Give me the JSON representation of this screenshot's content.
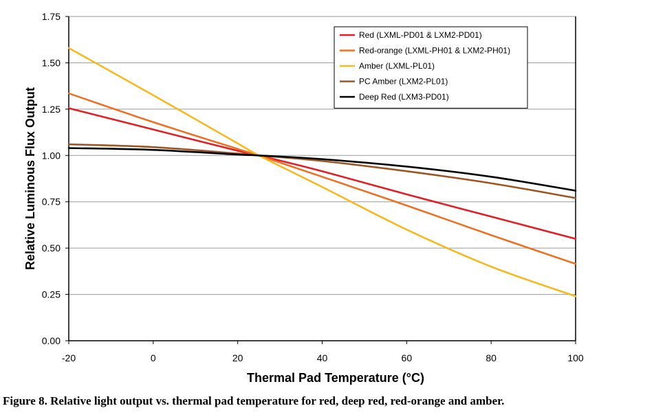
{
  "chart_data": {
    "type": "line",
    "xlabel": "Thermal Pad Temperature (°C)",
    "ylabel": "Relative Luminous Flux Output",
    "xlim": [
      -20,
      100
    ],
    "ylim": [
      0,
      1.75
    ],
    "xticks": [
      -20,
      0,
      20,
      40,
      60,
      80,
      100
    ],
    "yticks": [
      0,
      0.25,
      0.5,
      0.75,
      1.0,
      1.25,
      1.5,
      1.75
    ],
    "x_tick_labels": [
      "-20",
      "0",
      "20",
      "40",
      "60",
      "80",
      "100"
    ],
    "y_tick_labels": [
      "0.00",
      "0.25",
      "0.50",
      "0.75",
      "1.00",
      "1.25",
      "1.50",
      "1.75"
    ],
    "grid": "horizontal",
    "legend_position": "top-right",
    "series": [
      {
        "name": "Red (LXML-PD01 & LXM2-PD01)",
        "color": "#e31e24",
        "x": [
          -20,
          0,
          20,
          25,
          40,
          60,
          80,
          100
        ],
        "y": [
          1.255,
          1.14,
          1.025,
          1.0,
          0.915,
          0.79,
          0.67,
          0.55
        ]
      },
      {
        "name": "Red-orange (LXML-PH01 & LXM2-PH01)",
        "color": "#ed7125",
        "x": [
          -20,
          0,
          20,
          25,
          40,
          60,
          80,
          100
        ],
        "y": [
          1.335,
          1.18,
          1.035,
          1.0,
          0.885,
          0.73,
          0.57,
          0.415
        ]
      },
      {
        "name": "Amber (LXML-PL01)",
        "color": "#f5b922",
        "x": [
          -20,
          0,
          20,
          25,
          40,
          60,
          80,
          100
        ],
        "y": [
          1.58,
          1.325,
          1.065,
          1.0,
          0.83,
          0.6,
          0.4,
          0.24
        ]
      },
      {
        "name": "PC Amber (LXM2-PL01)",
        "color": "#9c5523",
        "x": [
          -20,
          0,
          20,
          25,
          40,
          60,
          80,
          100
        ],
        "y": [
          1.06,
          1.045,
          1.01,
          1.0,
          0.97,
          0.915,
          0.85,
          0.77
        ]
      },
      {
        "name": "Deep Red (LXM3-PD01)",
        "color": "#000000",
        "x": [
          -20,
          0,
          20,
          25,
          40,
          60,
          80,
          100
        ],
        "y": [
          1.04,
          1.03,
          1.005,
          1.0,
          0.98,
          0.94,
          0.885,
          0.81
        ]
      }
    ]
  },
  "caption": "Figure 8.  Relative light output vs. thermal pad temperature for red, deep red, red-orange and amber."
}
